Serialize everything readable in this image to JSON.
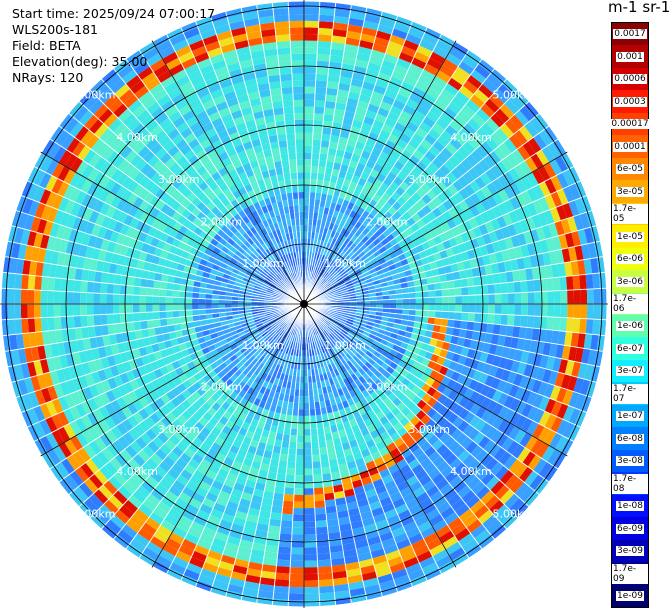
{
  "info": {
    "start_time": "Start time: 2025/09/24 07:00:17",
    "instrument": "WLS200s-181",
    "field": "Field: BETA",
    "elevation": "Elevation(deg): 35.00",
    "nrays": "NRays: 120"
  },
  "colorbar": {
    "title": "m-1 sr-1",
    "labels": [
      "0.0017",
      "0.001",
      "0.0006",
      "0.0003",
      "0.00017",
      "0.0001",
      "6e-05",
      "3e-05",
      "1.7e-05",
      "1e-05",
      "6e-06",
      "3e-06",
      "1.7e-06",
      "1e-06",
      "6e-07",
      "3e-07",
      "1.7e-07",
      "1e-07",
      "6e-08",
      "3e-08",
      "1.7e-08",
      "1e-08",
      "6e-09",
      "3e-09",
      "1.7e-09",
      "1e-09"
    ],
    "colors": [
      "#8b0000",
      "#b30000",
      "#d40000",
      "#ff1a00",
      "#ff4000",
      "#ff6200",
      "#ff8800",
      "#ffaa00",
      "#ffcc00",
      "#ffee00",
      "#f0ff10",
      "#c8ff40",
      "#90ff80",
      "#60ffb0",
      "#30ffe0",
      "#10eeff",
      "#00ccff",
      "#00a8ff",
      "#0080ff",
      "#005cff",
      "#0038ff",
      "#0010ff",
      "#0000e0",
      "#0000b8",
      "#000090",
      "#000070"
    ]
  },
  "range_rings": {
    "labels": [
      "1.00km",
      "2.00km",
      "3.00km",
      "4.00km",
      "5.00km"
    ]
  },
  "scan": {
    "nrays": 120,
    "nrings": 5
  }
}
